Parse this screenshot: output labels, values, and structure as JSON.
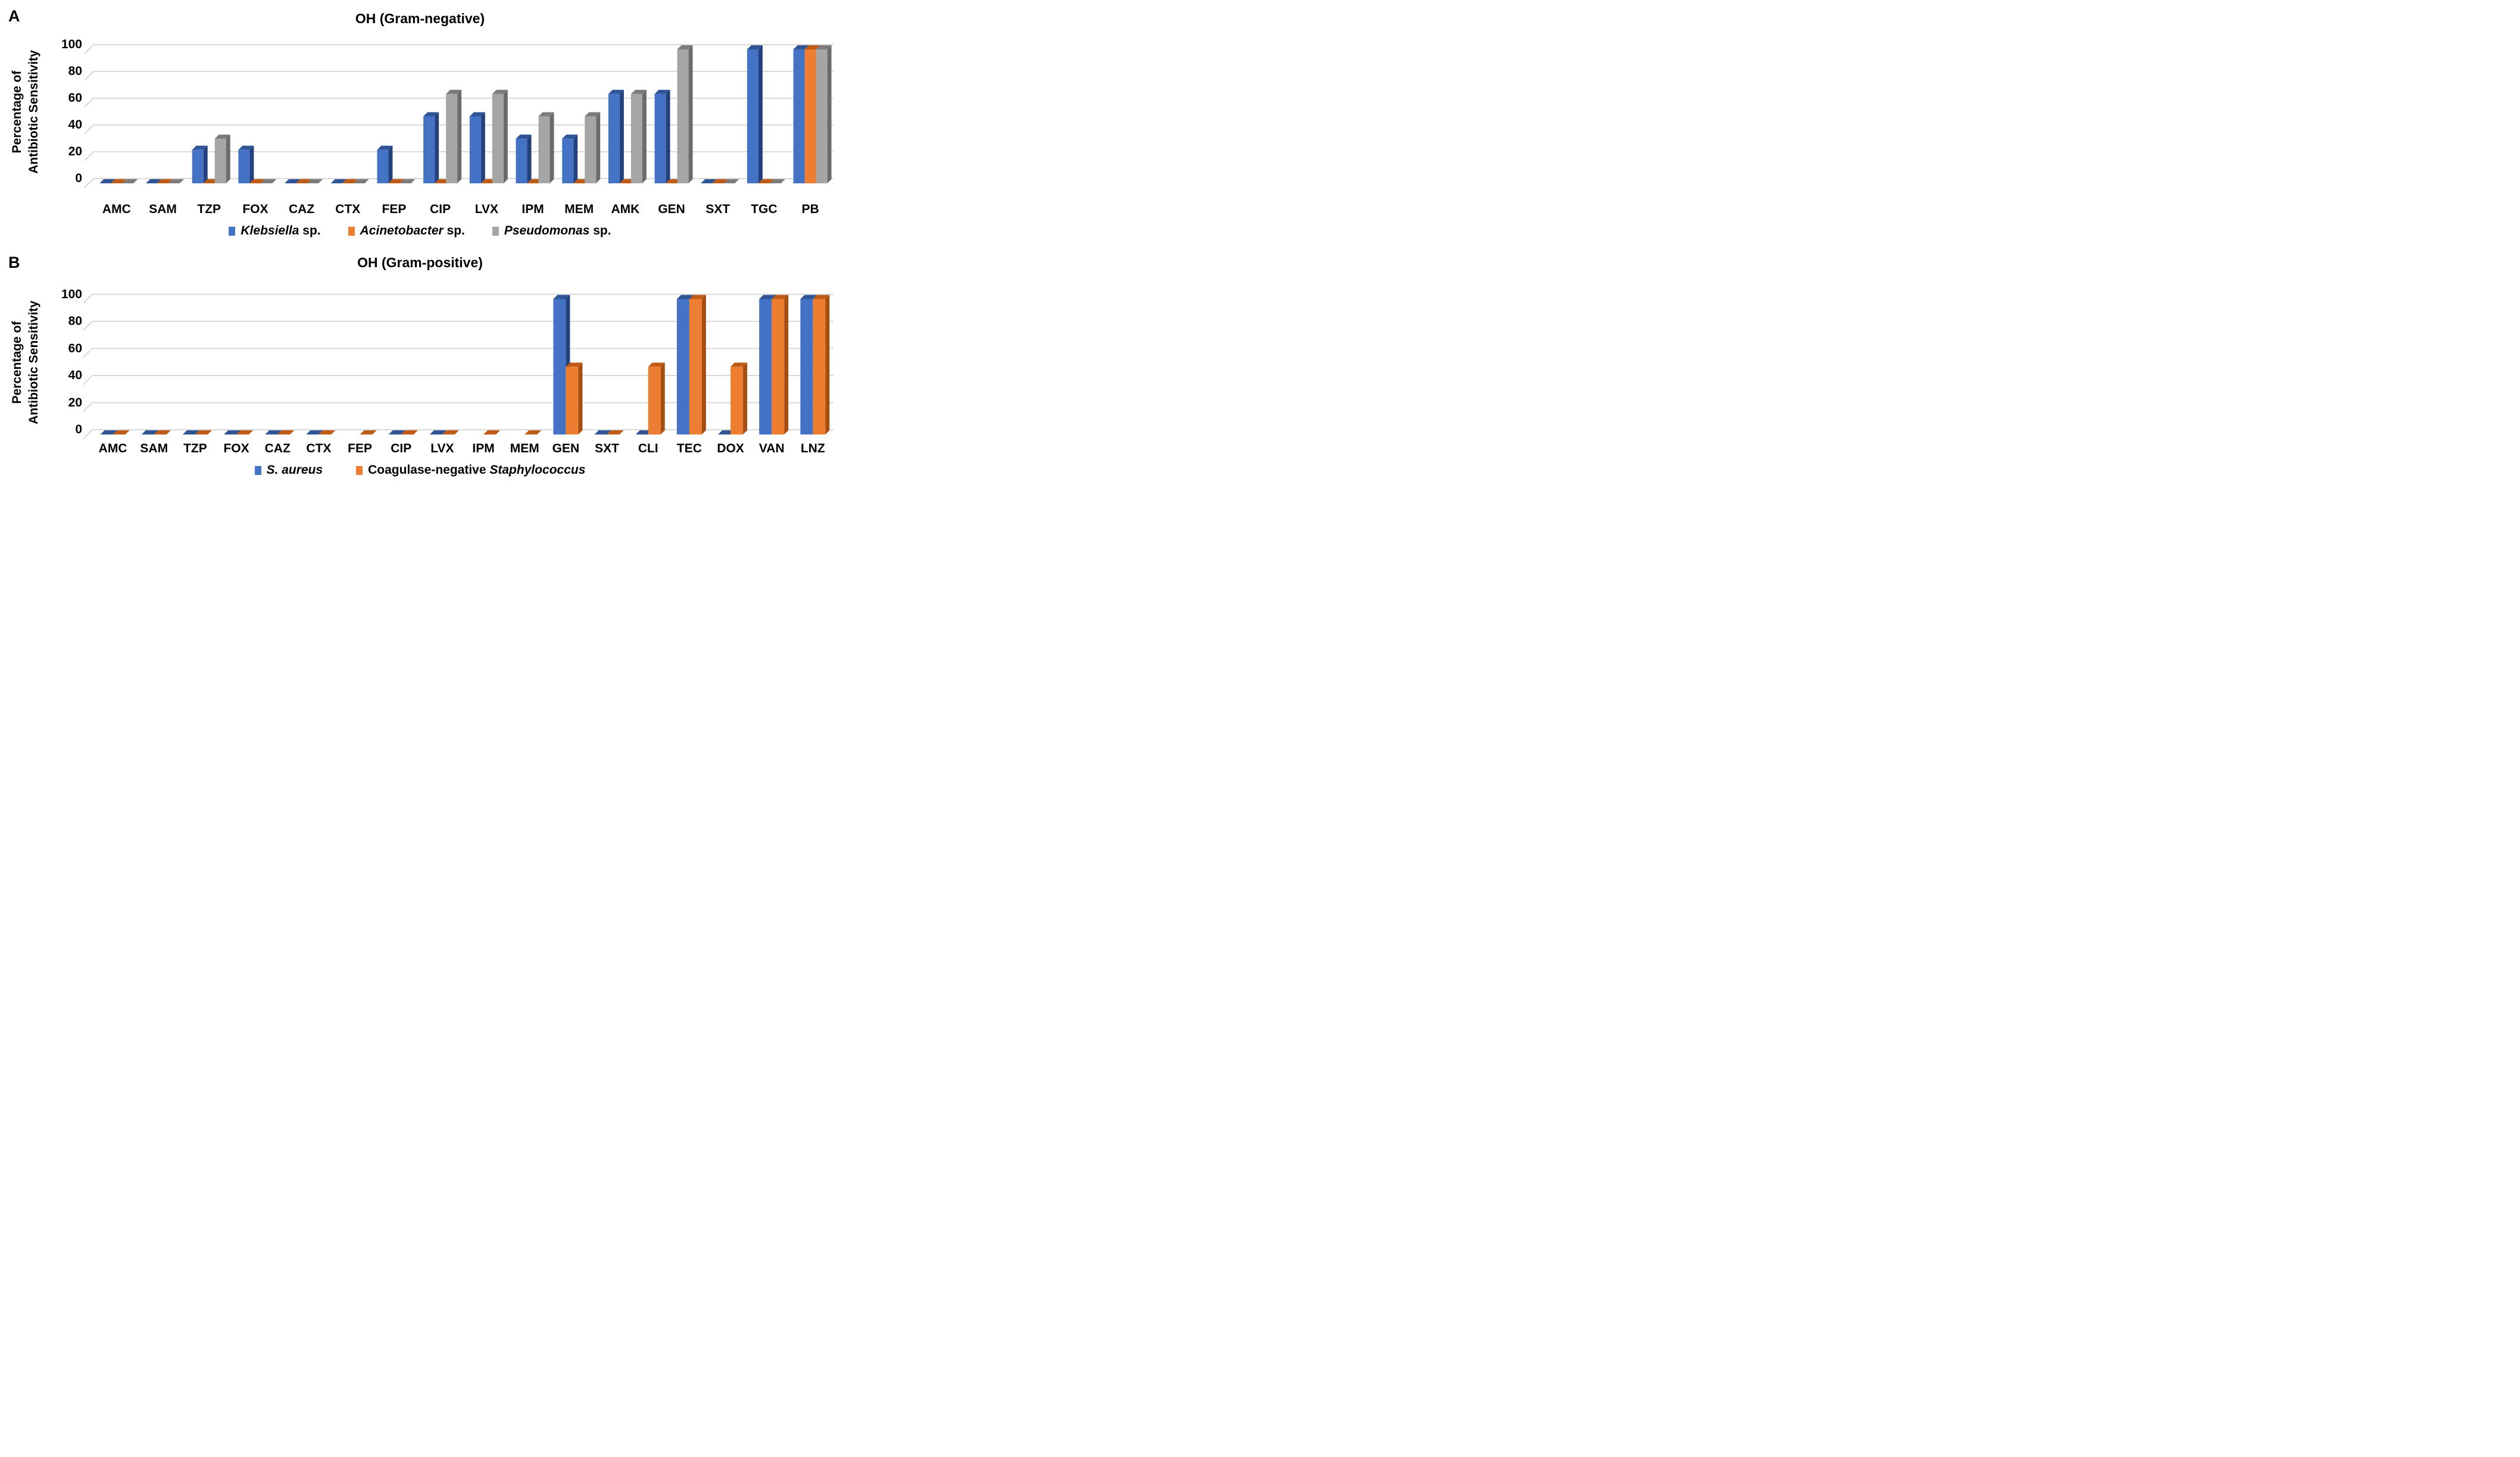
{
  "chart_data": [
    {
      "type": "bar",
      "style": "3d-clustered-column",
      "panel_letter": "A",
      "title": "OH (Gram-negative)",
      "ylabel_line1": "Percentage of",
      "ylabel_line2": "Antibiotic Sensitivity",
      "yticks": [
        0,
        20,
        40,
        60,
        80,
        100
      ],
      "ylim": [
        0,
        100
      ],
      "grid": true,
      "legend_position": "bottom",
      "gridline_color": "#D9D9D9",
      "categories": [
        "AMC",
        "SAM",
        "TZP",
        "FOX",
        "CAZ",
        "CTX",
        "FEP",
        "CIP",
        "LVX",
        "IPM",
        "MEM",
        "AMK",
        "GEN",
        "SXT",
        "TGC",
        "PB"
      ],
      "series": [
        {
          "name": "Klebsiella sp.",
          "legend_pre": "",
          "legend_italic": "Klebsiella",
          "legend_post": " sp.",
          "color": "#4472C4",
          "color_top": "#2F5597",
          "color_side": "#24417E",
          "values": [
            0,
            0,
            25,
            25,
            0,
            0,
            25,
            50,
            50,
            33.3,
            33.3,
            66.7,
            66.7,
            0,
            100,
            100
          ]
        },
        {
          "name": "Acinetobacter sp.",
          "legend_pre": "",
          "legend_italic": "Acinetobacter",
          "legend_post": " sp.",
          "color": "#ED7D31",
          "color_top": "#C05B15",
          "color_side": "#A64D12",
          "values": [
            0,
            0,
            0,
            0,
            0,
            0,
            0,
            0,
            0,
            0,
            0,
            0,
            0,
            0,
            0,
            100
          ]
        },
        {
          "name": "Pseudomonas sp.",
          "legend_pre": "",
          "legend_italic": "Pseudomonas",
          "legend_post": " sp.",
          "color": "#A5A5A5",
          "color_top": "#7C7C7C",
          "color_side": "#6B6B6B",
          "values": [
            0,
            0,
            33.3,
            0,
            0,
            0,
            0,
            66.7,
            66.7,
            50,
            50,
            66.7,
            100,
            0,
            0,
            100
          ]
        }
      ]
    },
    {
      "type": "bar",
      "style": "3d-clustered-column",
      "panel_letter": "B",
      "title": "OH (Gram-positive)",
      "ylabel_line1": "Percentage of",
      "ylabel_line2": "Antibiotic Sensitivity",
      "yticks": [
        0,
        20,
        40,
        60,
        80,
        100
      ],
      "ylim": [
        0,
        100
      ],
      "grid": true,
      "legend_position": "bottom",
      "gridline_color": "#D9D9D9",
      "categories": [
        "AMC",
        "SAM",
        "TZP",
        "FOX",
        "CAZ",
        "CTX",
        "FEP",
        "CIP",
        "LVX",
        "IPM",
        "MEM",
        "GEN",
        "SXT",
        "CLI",
        "TEC",
        "DOX",
        "VAN",
        "LNZ"
      ],
      "series": [
        {
          "name": "S. aureus",
          "legend_pre": "",
          "legend_italic": "S. aureus",
          "legend_post": "",
          "color": "#4472C4",
          "color_top": "#2F5597",
          "color_side": "#24417E",
          "values": [
            0,
            0,
            0,
            0,
            0,
            0,
            null,
            0,
            0,
            null,
            null,
            100,
            0,
            0,
            100,
            0,
            100,
            100
          ]
        },
        {
          "name": "Coagulase-negative Staphylococcus",
          "legend_pre": "Coagulase-negative ",
          "legend_italic": "Staphylococcus",
          "legend_post": "",
          "color": "#ED7D31",
          "color_top": "#C05B15",
          "color_side": "#A64D12",
          "values": [
            0,
            0,
            0,
            0,
            0,
            0,
            0,
            0,
            0,
            0,
            0,
            50,
            0,
            50,
            100,
            50,
            100,
            100
          ]
        }
      ]
    }
  ]
}
